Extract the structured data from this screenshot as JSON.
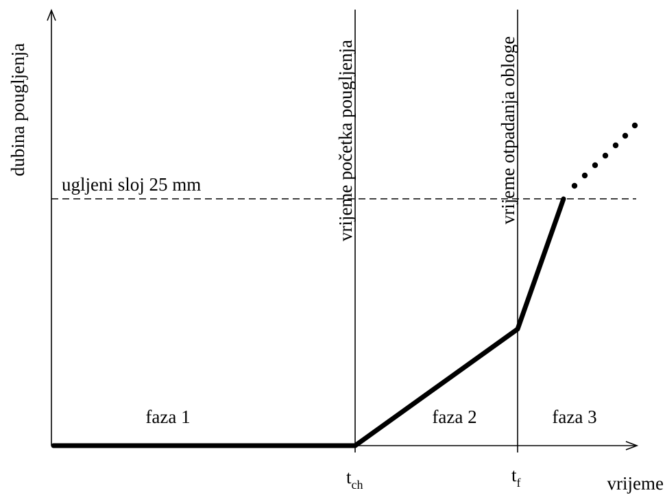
{
  "axes": {
    "y_label": "dubina pougljenja",
    "x_label": "vrijeme"
  },
  "threshold": {
    "label": "ugljeni sloj 25 mm"
  },
  "events": {
    "t_ch": {
      "base": "t",
      "sub": "ch",
      "caption": "vrijeme početka pougljenja"
    },
    "t_f": {
      "base": "t",
      "sub": "f",
      "caption": "vrijeme otpadanja obloge"
    }
  },
  "phases": [
    {
      "label": "faza 1"
    },
    {
      "label": "faza 2"
    },
    {
      "label": "faza 3"
    }
  ],
  "colors": {
    "ink": "#000000",
    "background": "#ffffff"
  }
}
